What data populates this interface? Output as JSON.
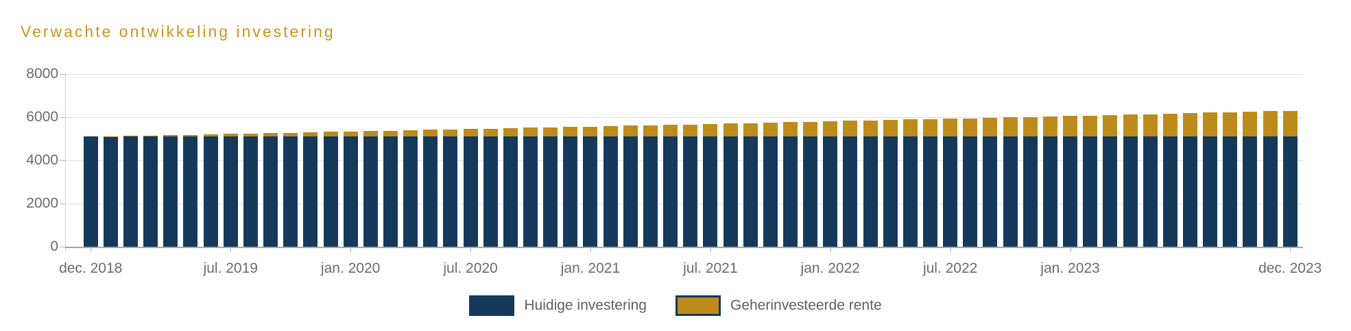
{
  "title": "Verwachte ontwikkeling investering",
  "colors": {
    "navy": "#15395B",
    "gold": "#BD8B1B",
    "title_gold": "#C8951B",
    "axis_text": "#6B6B6B",
    "legend_text": "#5F5F5F",
    "gridline": "#DCDCDC",
    "axis_line": "#A6A6A6"
  },
  "legend": [
    {
      "label": "Huidige investering",
      "color": "#15395B"
    },
    {
      "label": "Geherinvesteerde rente",
      "color": "#BD8B1B"
    }
  ],
  "chart_data": {
    "type": "bar",
    "stacked": true,
    "title": "Verwachte ontwikkeling investering",
    "x": [
      "dec. 2018",
      "jan. 2019",
      "feb. 2019",
      "mrt. 2019",
      "apr. 2019",
      "mei 2019",
      "jun. 2019",
      "jul. 2019",
      "aug. 2019",
      "sep. 2019",
      "okt. 2019",
      "nov. 2019",
      "dec. 2019",
      "jan. 2020",
      "feb. 2020",
      "mrt. 2020",
      "apr. 2020",
      "mei 2020",
      "jun. 2020",
      "jul. 2020",
      "aug. 2020",
      "sep. 2020",
      "okt. 2020",
      "nov. 2020",
      "dec. 2020",
      "jan. 2021",
      "feb. 2021",
      "mrt. 2021",
      "apr. 2021",
      "mei 2021",
      "jun. 2021",
      "jul. 2021",
      "aug. 2021",
      "sep. 2021",
      "okt. 2021",
      "nov. 2021",
      "dec. 2021",
      "jan. 2022",
      "feb. 2022",
      "mrt. 2022",
      "apr. 2022",
      "mei 2022",
      "jun. 2022",
      "jul. 2022",
      "aug. 2022",
      "sep. 2022",
      "okt. 2022",
      "nov. 2022",
      "dec. 2022",
      "jan. 2023",
      "feb. 2023",
      "mrt. 2023",
      "apr. 2023",
      "mei 2023",
      "jun. 2023",
      "jul. 2023",
      "aug. 2023",
      "sep. 2023",
      "okt. 2023",
      "nov. 2023",
      "dec. 2023"
    ],
    "series": [
      {
        "name": "Huidige investering",
        "color": "#15395B",
        "values": [
          5100,
          5100,
          5100,
          5100,
          5100,
          5100,
          5100,
          5100,
          5100,
          5100,
          5100,
          5100,
          5100,
          5100,
          5100,
          5100,
          5100,
          5100,
          5100,
          5100,
          5100,
          5100,
          5100,
          5100,
          5100,
          5100,
          5100,
          5100,
          5100,
          5100,
          5100,
          5100,
          5100,
          5100,
          5100,
          5100,
          5100,
          5100,
          5100,
          5100,
          5100,
          5100,
          5100,
          5100,
          5100,
          5100,
          5100,
          5100,
          5100,
          5100,
          5100,
          5100,
          5100,
          5100,
          5100,
          5100,
          5100,
          5100,
          5100,
          5100,
          5100
        ]
      },
      {
        "name": "Geherinvesteerde rente",
        "color": "#BD8B1B",
        "values": [
          0,
          18,
          36,
          54,
          72,
          90,
          108,
          127,
          145,
          164,
          182,
          201,
          219,
          238,
          257,
          276,
          294,
          313,
          332,
          352,
          371,
          390,
          409,
          429,
          448,
          468,
          487,
          507,
          526,
          546,
          566,
          586,
          606,
          626,
          646,
          666,
          687,
          707,
          727,
          748,
          768,
          789,
          810,
          830,
          851,
          872,
          893,
          914,
          935,
          957,
          978,
          999,
          1021,
          1042,
          1064,
          1086,
          1107,
          1129,
          1151,
          1173,
          1195
        ]
      }
    ],
    "ylim": [
      0,
      8000
    ],
    "yticks": [
      0,
      2000,
      4000,
      6000,
      8000
    ],
    "xtick_labels": [
      "dec. 2018",
      "jul. 2019",
      "jan. 2020",
      "jul. 2020",
      "jan. 2021",
      "jul. 2021",
      "jan. 2022",
      "jul. 2022",
      "jan. 2023",
      "dec. 2023"
    ],
    "xtick_indices": [
      0,
      7,
      13,
      19,
      25,
      31,
      37,
      43,
      49,
      60
    ],
    "grid": "horizontal",
    "legend_position": "bottom"
  }
}
